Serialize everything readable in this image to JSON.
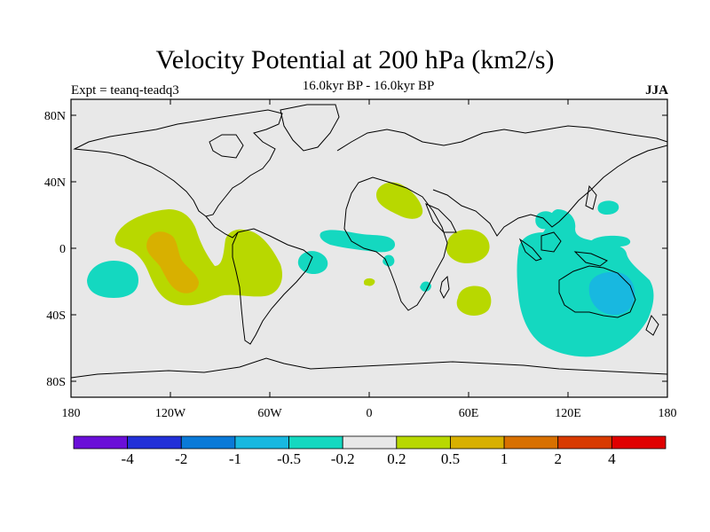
{
  "header": {
    "title": "Velocity Potential at 200 hPa (km2/s)",
    "subtitle": "16.0kyr BP - 16.0kyr BP",
    "experiment": "Expt = teanq-teadq3",
    "season": "JJA"
  },
  "axes": {
    "lat_ticks": [
      "80N",
      "40N",
      "0",
      "40S",
      "80S"
    ],
    "lon_ticks": [
      "180",
      "120W",
      "60W",
      "0",
      "60E",
      "120E",
      "180"
    ]
  },
  "colorbar": {
    "labels": [
      "-4",
      "-2",
      "-1",
      "-0.5",
      "-0.2",
      "0.2",
      "0.5",
      "1",
      "2",
      "4"
    ],
    "colors": [
      "#6a0fd8",
      "#2230d8",
      "#0a7ad8",
      "#18b8e0",
      "#14d8c0",
      "#e8e8e8",
      "#b8d800",
      "#d8b000",
      "#d87000",
      "#d83a00",
      "#e00000"
    ]
  },
  "map": {
    "background": "#e8e8e8",
    "contour_colors": {
      "pos_0_2": "#b8d800",
      "pos_0_5": "#d8b000",
      "neg_0_2": "#14d8c0",
      "neg_0_5": "#18b8e0"
    }
  }
}
